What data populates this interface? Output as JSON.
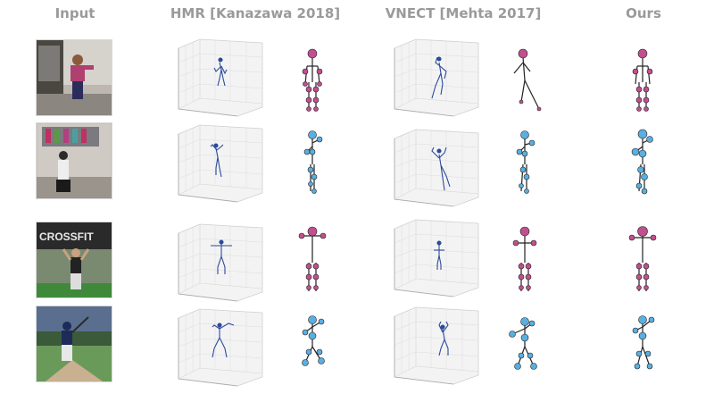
{
  "headers": {
    "input": "Input",
    "hmr": "HMR [Kanazawa 2018]",
    "vnect": "VNECT [Mehta 2017]",
    "ours": "Ours"
  },
  "colors": {
    "header_text": "#9a9a9a",
    "stick_line": "#2c4a9a",
    "joint_magenta": "#c0508e",
    "joint_blue": "#5aaee0",
    "cube_grid": "#c8c8c8",
    "cube_face": "#f2f2f2"
  },
  "rows": [
    {
      "input_scene": "person-pink-shirt-room",
      "figure_color": "magenta"
    },
    {
      "input_scene": "batter-indoor-cage",
      "figure_color": "blue"
    },
    {
      "input_scene": "crossfit-gym",
      "figure_color": "magenta",
      "sign_text": "CROSSFIT"
    },
    {
      "input_scene": "baseball-field-batter",
      "figure_color": "blue"
    }
  ]
}
